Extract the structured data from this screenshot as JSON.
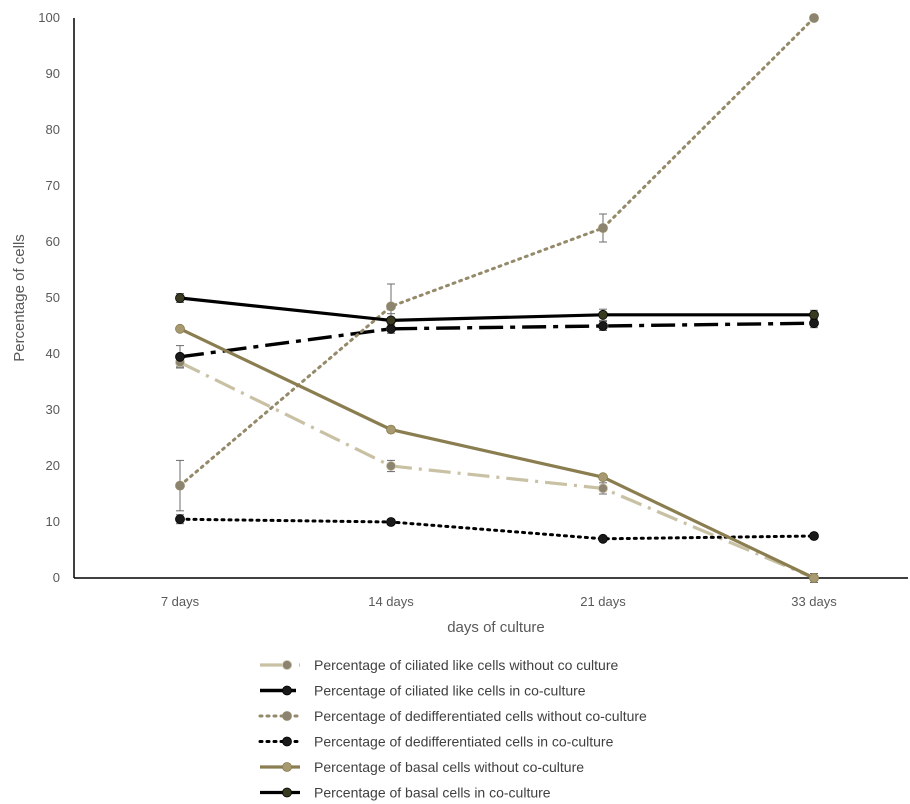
{
  "chart_data": {
    "type": "line",
    "title": "",
    "xlabel": "days of culture",
    "ylabel": "Percentage of cells",
    "categories": [
      "7 days",
      "14 days",
      "21 days",
      "33 days"
    ],
    "ylim": [
      0,
      100
    ],
    "yticks": [
      0,
      10,
      20,
      30,
      40,
      50,
      60,
      70,
      80,
      90,
      100
    ],
    "grid": false,
    "legend_position": "bottom",
    "series": [
      {
        "name": "Percentage of ciliated like cells without co culture",
        "values": [
          38.5,
          20,
          16,
          0
        ],
        "errors": [
          0.8,
          1,
          1,
          0.8
        ],
        "color": "#c9c1a4",
        "line_style": "dash-dot",
        "marker_color": "#8c8470"
      },
      {
        "name": "Percentage of ciliated like cells in co-culture",
        "values": [
          39.5,
          44.5,
          45,
          45.5
        ],
        "errors": [
          2,
          0.8,
          0.8,
          0.8
        ],
        "color": "#000000",
        "line_style": "long-dash-dot",
        "marker_color": "#1a1a1a"
      },
      {
        "name": "Percentage of dedifferentiated cells without co-culture",
        "values": [
          16.5,
          48.5,
          62.5,
          100
        ],
        "errors": [
          4.5,
          4,
          2.5,
          0
        ],
        "color": "#948a6a",
        "line_style": "dotted",
        "marker_color": "#8c8470"
      },
      {
        "name": "Percentage of dedifferentiated cells in co-culture",
        "values": [
          10.5,
          10,
          7,
          7.5
        ],
        "errors": [
          0.8,
          0,
          0,
          0
        ],
        "color": "#000000",
        "line_style": "dotted",
        "marker_color": "#1a1a1a"
      },
      {
        "name": "Percentage of basal cells without co-culture",
        "values": [
          44.5,
          26.5,
          18,
          0
        ],
        "errors": [
          0,
          0,
          0,
          0.8
        ],
        "color": "#8a7d50",
        "line_style": "solid",
        "marker_color": "#a89a70"
      },
      {
        "name": "Percentage of basal cells in co-culture",
        "values": [
          50,
          46,
          47,
          47
        ],
        "errors": [
          0.8,
          1.2,
          1,
          0.8
        ],
        "color": "#000000",
        "line_style": "solid",
        "marker_color": "#3a3a20"
      }
    ]
  }
}
